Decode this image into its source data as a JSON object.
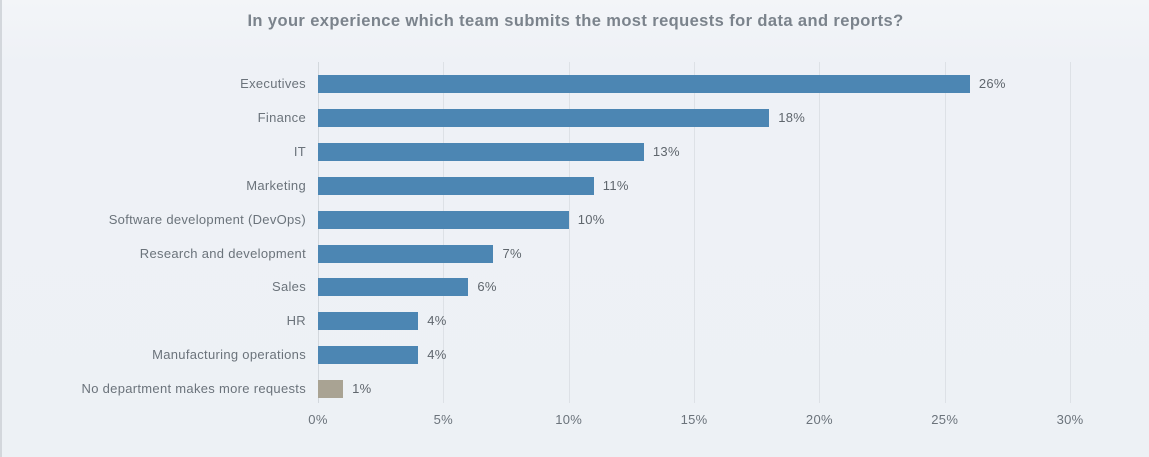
{
  "chart_data": {
    "type": "bar",
    "orientation": "horizontal",
    "title": "In your experience which team submits the most requests for data and reports?",
    "categories": [
      "Executives",
      "Finance",
      "IT",
      "Marketing",
      "Software development (DevOps)",
      "Research and development",
      "Sales",
      "HR",
      "Manufacturing operations",
      "No department makes more requests"
    ],
    "values": [
      26,
      18,
      13,
      11,
      10,
      7,
      6,
      4,
      4,
      1
    ],
    "value_labels": [
      "26%",
      "18%",
      "13%",
      "11%",
      "10%",
      "7%",
      "6%",
      "4%",
      "4%",
      "1%"
    ],
    "xlabel": "",
    "ylabel": "",
    "xlim": [
      0,
      30
    ],
    "x_ticks": [
      0,
      5,
      10,
      15,
      20,
      25,
      30
    ],
    "x_tick_labels": [
      "0%",
      "5%",
      "10%",
      "15%",
      "20%",
      "25%",
      "30%"
    ],
    "grid": true,
    "legend": false,
    "colors": {
      "bar": "#4c86b3",
      "highlight_bar": "#a9a393",
      "title_text": "#7b838c",
      "label_text": "#6b737b",
      "background": "#edf1f5",
      "gridline": "#dde1e6"
    },
    "highlight_index": 9
  }
}
